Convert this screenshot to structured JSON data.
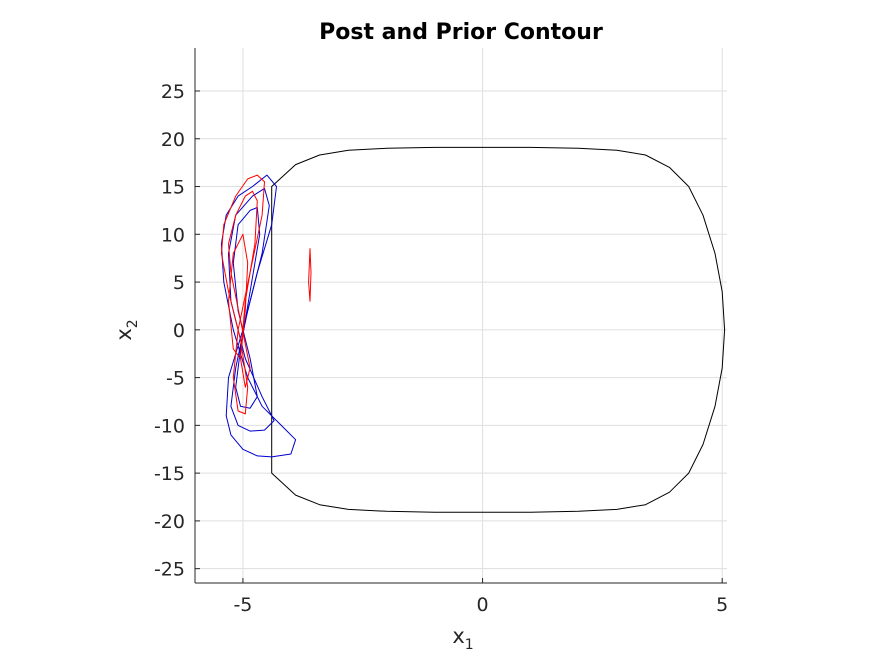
{
  "chart_data": {
    "type": "line",
    "title": "Post and Prior Contour",
    "xlabel": "x",
    "xlabel_sub": "1",
    "ylabel": "x",
    "ylabel_sub": "2",
    "xlim": [
      -6.0,
      5.1
    ],
    "ylim": [
      -26.5,
      29.5
    ],
    "grid": true,
    "xticks": [
      -5,
      0,
      5
    ],
    "xtick_labels": [
      "-5",
      "0",
      "5"
    ],
    "yticks": [
      -25,
      -20,
      -15,
      -10,
      -5,
      0,
      5,
      10,
      15,
      20,
      25
    ],
    "ytick_labels": [
      "-25",
      "-20",
      "-15",
      "-10",
      "-5",
      "0",
      "5",
      "10",
      "15",
      "20",
      "25"
    ],
    "colors": {
      "limit_cycle": "#000000",
      "prior": "#0000cc",
      "post": "#ff0000"
    },
    "series": [
      {
        "x": [
          -4.4,
          -3.9,
          -3.4,
          -2.8,
          -2.0,
          -1.0,
          0.0,
          1.0,
          2.0,
          2.8,
          3.4,
          3.9,
          4.3,
          4.6,
          4.85,
          5.0,
          5.05,
          5.0,
          4.85,
          4.6,
          4.3,
          3.9,
          3.4,
          2.8,
          2.0,
          1.0,
          0.0,
          -1.0,
          -2.0,
          -2.8,
          -3.4,
          -3.9,
          -4.4
        ],
        "y": [
          15.0,
          17.3,
          18.3,
          18.8,
          19.0,
          19.1,
          19.1,
          19.1,
          19.0,
          18.8,
          18.3,
          17.0,
          15.0,
          12.0,
          8.0,
          4.0,
          0.0,
          -4.0,
          -8.0,
          -12.0,
          -15.0,
          -17.0,
          -18.3,
          -18.8,
          -19.0,
          -19.1,
          -19.1,
          -19.1,
          -19.0,
          -18.8,
          -18.3,
          -17.3,
          -15.0
        ]
      }
    ],
    "prior_contours": [
      {
        "level": 1,
        "x": [
          -4.8,
          -4.5,
          -4.3,
          -4.4,
          -4.7,
          -5.0,
          -5.3,
          -5.35,
          -5.25,
          -5.0,
          -4.7,
          -4.4,
          -4.0,
          -3.9,
          -4.2,
          -4.6,
          -4.9,
          -5.2,
          -5.4,
          -5.45,
          -5.35,
          -5.1,
          -4.8
        ],
        "y": [
          15.0,
          16.2,
          15.0,
          11.0,
          6.0,
          0.0,
          -5.0,
          -9.0,
          -11.0,
          -12.5,
          -13.2,
          -13.3,
          -13.0,
          -11.5,
          -10.0,
          -8.0,
          -5.0,
          0.0,
          5.0,
          9.0,
          12.0,
          14.0,
          15.0
        ]
      },
      {
        "level": 2,
        "x": [
          -4.8,
          -4.55,
          -4.45,
          -4.6,
          -4.9,
          -5.15,
          -5.25,
          -5.1,
          -4.85,
          -4.55,
          -4.35,
          -4.6,
          -4.95,
          -5.25,
          -5.3,
          -5.15,
          -4.8
        ],
        "y": [
          14.0,
          14.8,
          13.0,
          8.0,
          2.0,
          -4.0,
          -8.0,
          -10.0,
          -10.6,
          -10.5,
          -9.5,
          -7.0,
          -3.0,
          3.0,
          8.0,
          12.0,
          14.0
        ]
      },
      {
        "level": 3,
        "x": [
          -4.85,
          -4.7,
          -4.65,
          -4.85,
          -5.05,
          -5.15,
          -5.05,
          -4.85,
          -4.7,
          -4.85,
          -5.1,
          -5.2,
          -5.1,
          -4.85
        ],
        "y": [
          12.5,
          12.8,
          10.0,
          4.0,
          -2.0,
          -6.0,
          -8.0,
          -8.2,
          -7.0,
          -3.0,
          2.0,
          7.0,
          11.0,
          12.5
        ]
      }
    ],
    "post_contours": [
      {
        "level": 1,
        "x": [
          -4.7,
          -4.55,
          -4.6,
          -4.85,
          -5.1,
          -5.2,
          -5.1,
          -4.95,
          -4.9,
          -5.05,
          -5.3,
          -5.45,
          -5.4,
          -5.15,
          -4.9,
          -4.7
        ],
        "y": [
          16.2,
          15.5,
          12.0,
          6.0,
          0.0,
          -5.0,
          -8.5,
          -8.8,
          -6.0,
          -1.0,
          4.0,
          8.0,
          11.0,
          14.0,
          15.8,
          16.2
        ]
      },
      {
        "level": 2,
        "x": [
          -4.8,
          -4.7,
          -4.75,
          -4.95,
          -5.05,
          -4.95,
          -4.85,
          -5.05,
          -5.25,
          -5.3,
          -5.15,
          -4.95,
          -4.8
        ],
        "y": [
          14.5,
          13.5,
          9.0,
          3.0,
          -3.0,
          -6.0,
          -4.0,
          1.0,
          6.0,
          9.0,
          12.0,
          14.0,
          14.5
        ]
      },
      {
        "level": 3,
        "x": [
          -5.0,
          -4.9,
          -4.95,
          -5.05,
          -5.2,
          -5.3,
          -5.2,
          -5.0
        ],
        "y": [
          10.0,
          7.0,
          2.0,
          -3.0,
          -2.0,
          3.0,
          8.0,
          10.0
        ]
      },
      {
        "level": 4,
        "x": [
          -3.6,
          -3.58,
          -3.6,
          -3.63,
          -3.6
        ],
        "y": [
          8.5,
          6.0,
          3.0,
          5.0,
          8.5
        ]
      }
    ]
  }
}
